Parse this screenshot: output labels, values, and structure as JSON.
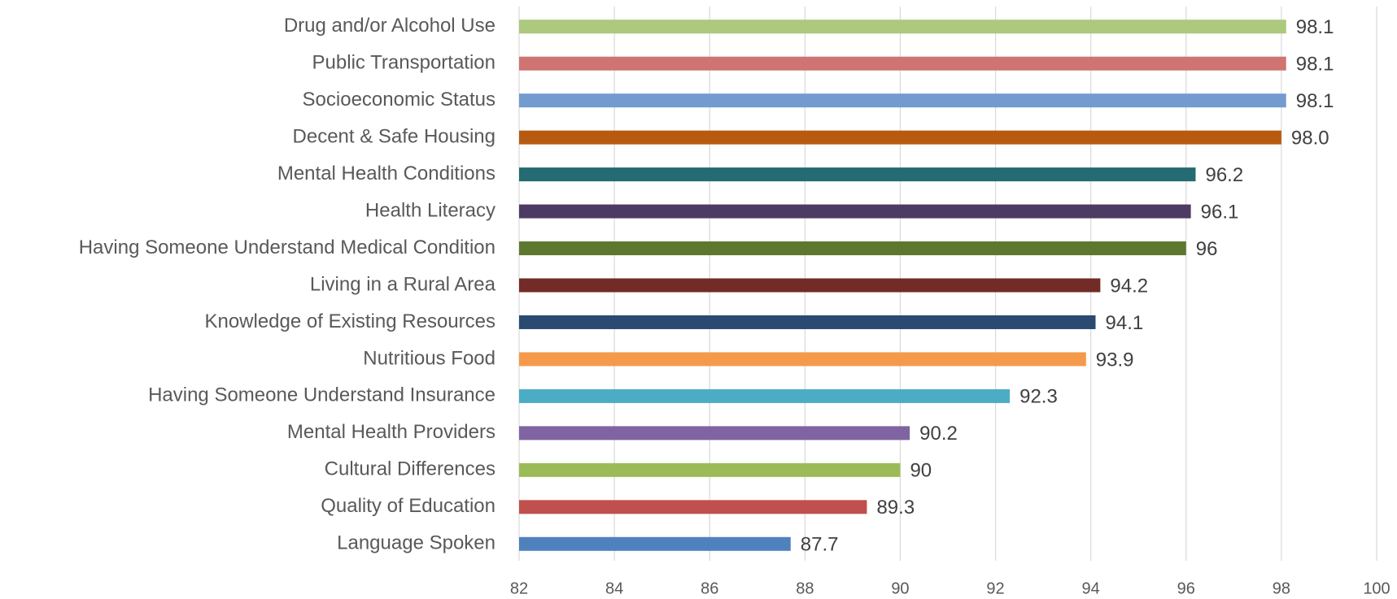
{
  "chart_data": {
    "type": "hbar",
    "categories": [
      "Drug and/or Alcohol Use",
      "Public Transportation",
      "Socioeconomic Status",
      "Decent & Safe Housing",
      "Mental Health Conditions",
      "Health Literacy",
      "Having Someone Understand Medical Condition",
      "Living in a Rural Area",
      "Knowledge of Existing Resources",
      "Nutritious Food",
      "Having Someone Understand Insurance",
      "Mental Health Providers",
      "Cultural Differences",
      "Quality of Education",
      "Language Spoken"
    ],
    "values": [
      98.1,
      98.1,
      98.1,
      98,
      96.2,
      96.1,
      96,
      94.2,
      94.1,
      93.9,
      92.3,
      90.2,
      90,
      89.3,
      87.7
    ],
    "value_labels": [
      "98.1",
      "98.1",
      "98.1",
      "98.0",
      "96.2",
      "96.1",
      "96",
      "94.2",
      "94.1",
      "93.9",
      "92.3",
      "90.2",
      "90",
      "89.3",
      "87.7"
    ],
    "colors": [
      "#adc97d",
      "#cf7472",
      "#739bcf",
      "#b75a10",
      "#246b73",
      "#4d3b63",
      "#5e772f",
      "#722b26",
      "#2b4a72",
      "#f59a4a",
      "#4bacc6",
      "#8064a2",
      "#9bbb59",
      "#c0504d",
      "#4f81bd"
    ],
    "xlim": [
      82,
      100
    ],
    "xticks": [
      82,
      84,
      86,
      88,
      90,
      92,
      94,
      96,
      98,
      100
    ],
    "grid": true
  }
}
